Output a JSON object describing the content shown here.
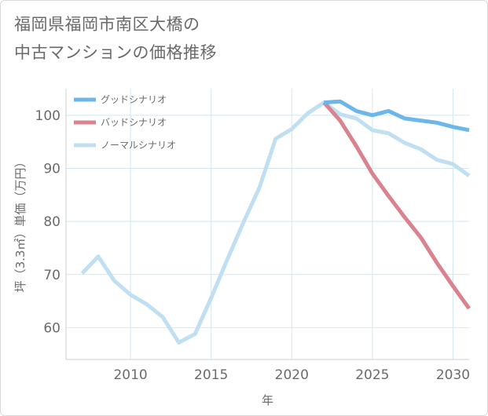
{
  "title_lines": [
    "福岡県福岡市南区大橋の",
    "中古マンションの価格推移"
  ],
  "chart_data": {
    "type": "line",
    "xlabel": "年",
    "ylabel": "坪（3.3㎡）単価（万円）",
    "xlim": [
      2006,
      2031
    ],
    "ylim": [
      54,
      105
    ],
    "xticks": [
      2010,
      2015,
      2020,
      2025,
      2030
    ],
    "yticks": [
      60,
      70,
      80,
      90,
      100
    ],
    "grid": true,
    "legend_position": "top-left",
    "series": [
      {
        "name": "グッドシナリオ",
        "color": "#6bb7ea",
        "x": [
          2022,
          2023,
          2024,
          2025,
          2026,
          2027,
          2028,
          2029,
          2030,
          2031
        ],
        "values": [
          102.4,
          102.6,
          100.8,
          100.0,
          100.8,
          99.4,
          99.0,
          98.6,
          97.8,
          97.2
        ]
      },
      {
        "name": "バッドシナリオ",
        "color": "#d9838f",
        "x": [
          2022,
          2023,
          2024,
          2025,
          2026,
          2027,
          2028,
          2029,
          2030,
          2031
        ],
        "values": [
          102.4,
          99.0,
          94.2,
          89.0,
          84.8,
          80.8,
          77.0,
          72.2,
          67.8,
          63.6
        ]
      },
      {
        "name": "ノーマルシナリオ",
        "color": "#c0dff0",
        "x": [
          2007,
          2008,
          2009,
          2010,
          2011,
          2012,
          2013,
          2014,
          2015,
          2016,
          2017,
          2018,
          2019,
          2020,
          2021,
          2022,
          2023,
          2024,
          2025,
          2026,
          2027,
          2028,
          2029,
          2030,
          2031
        ],
        "values": [
          70.2,
          73.4,
          68.8,
          66.2,
          64.4,
          62.0,
          57.2,
          58.8,
          65.6,
          72.8,
          79.8,
          86.4,
          95.6,
          97.4,
          100.4,
          102.4,
          100.2,
          99.4,
          97.2,
          96.6,
          94.8,
          93.6,
          91.6,
          90.8,
          88.6
        ]
      }
    ]
  }
}
